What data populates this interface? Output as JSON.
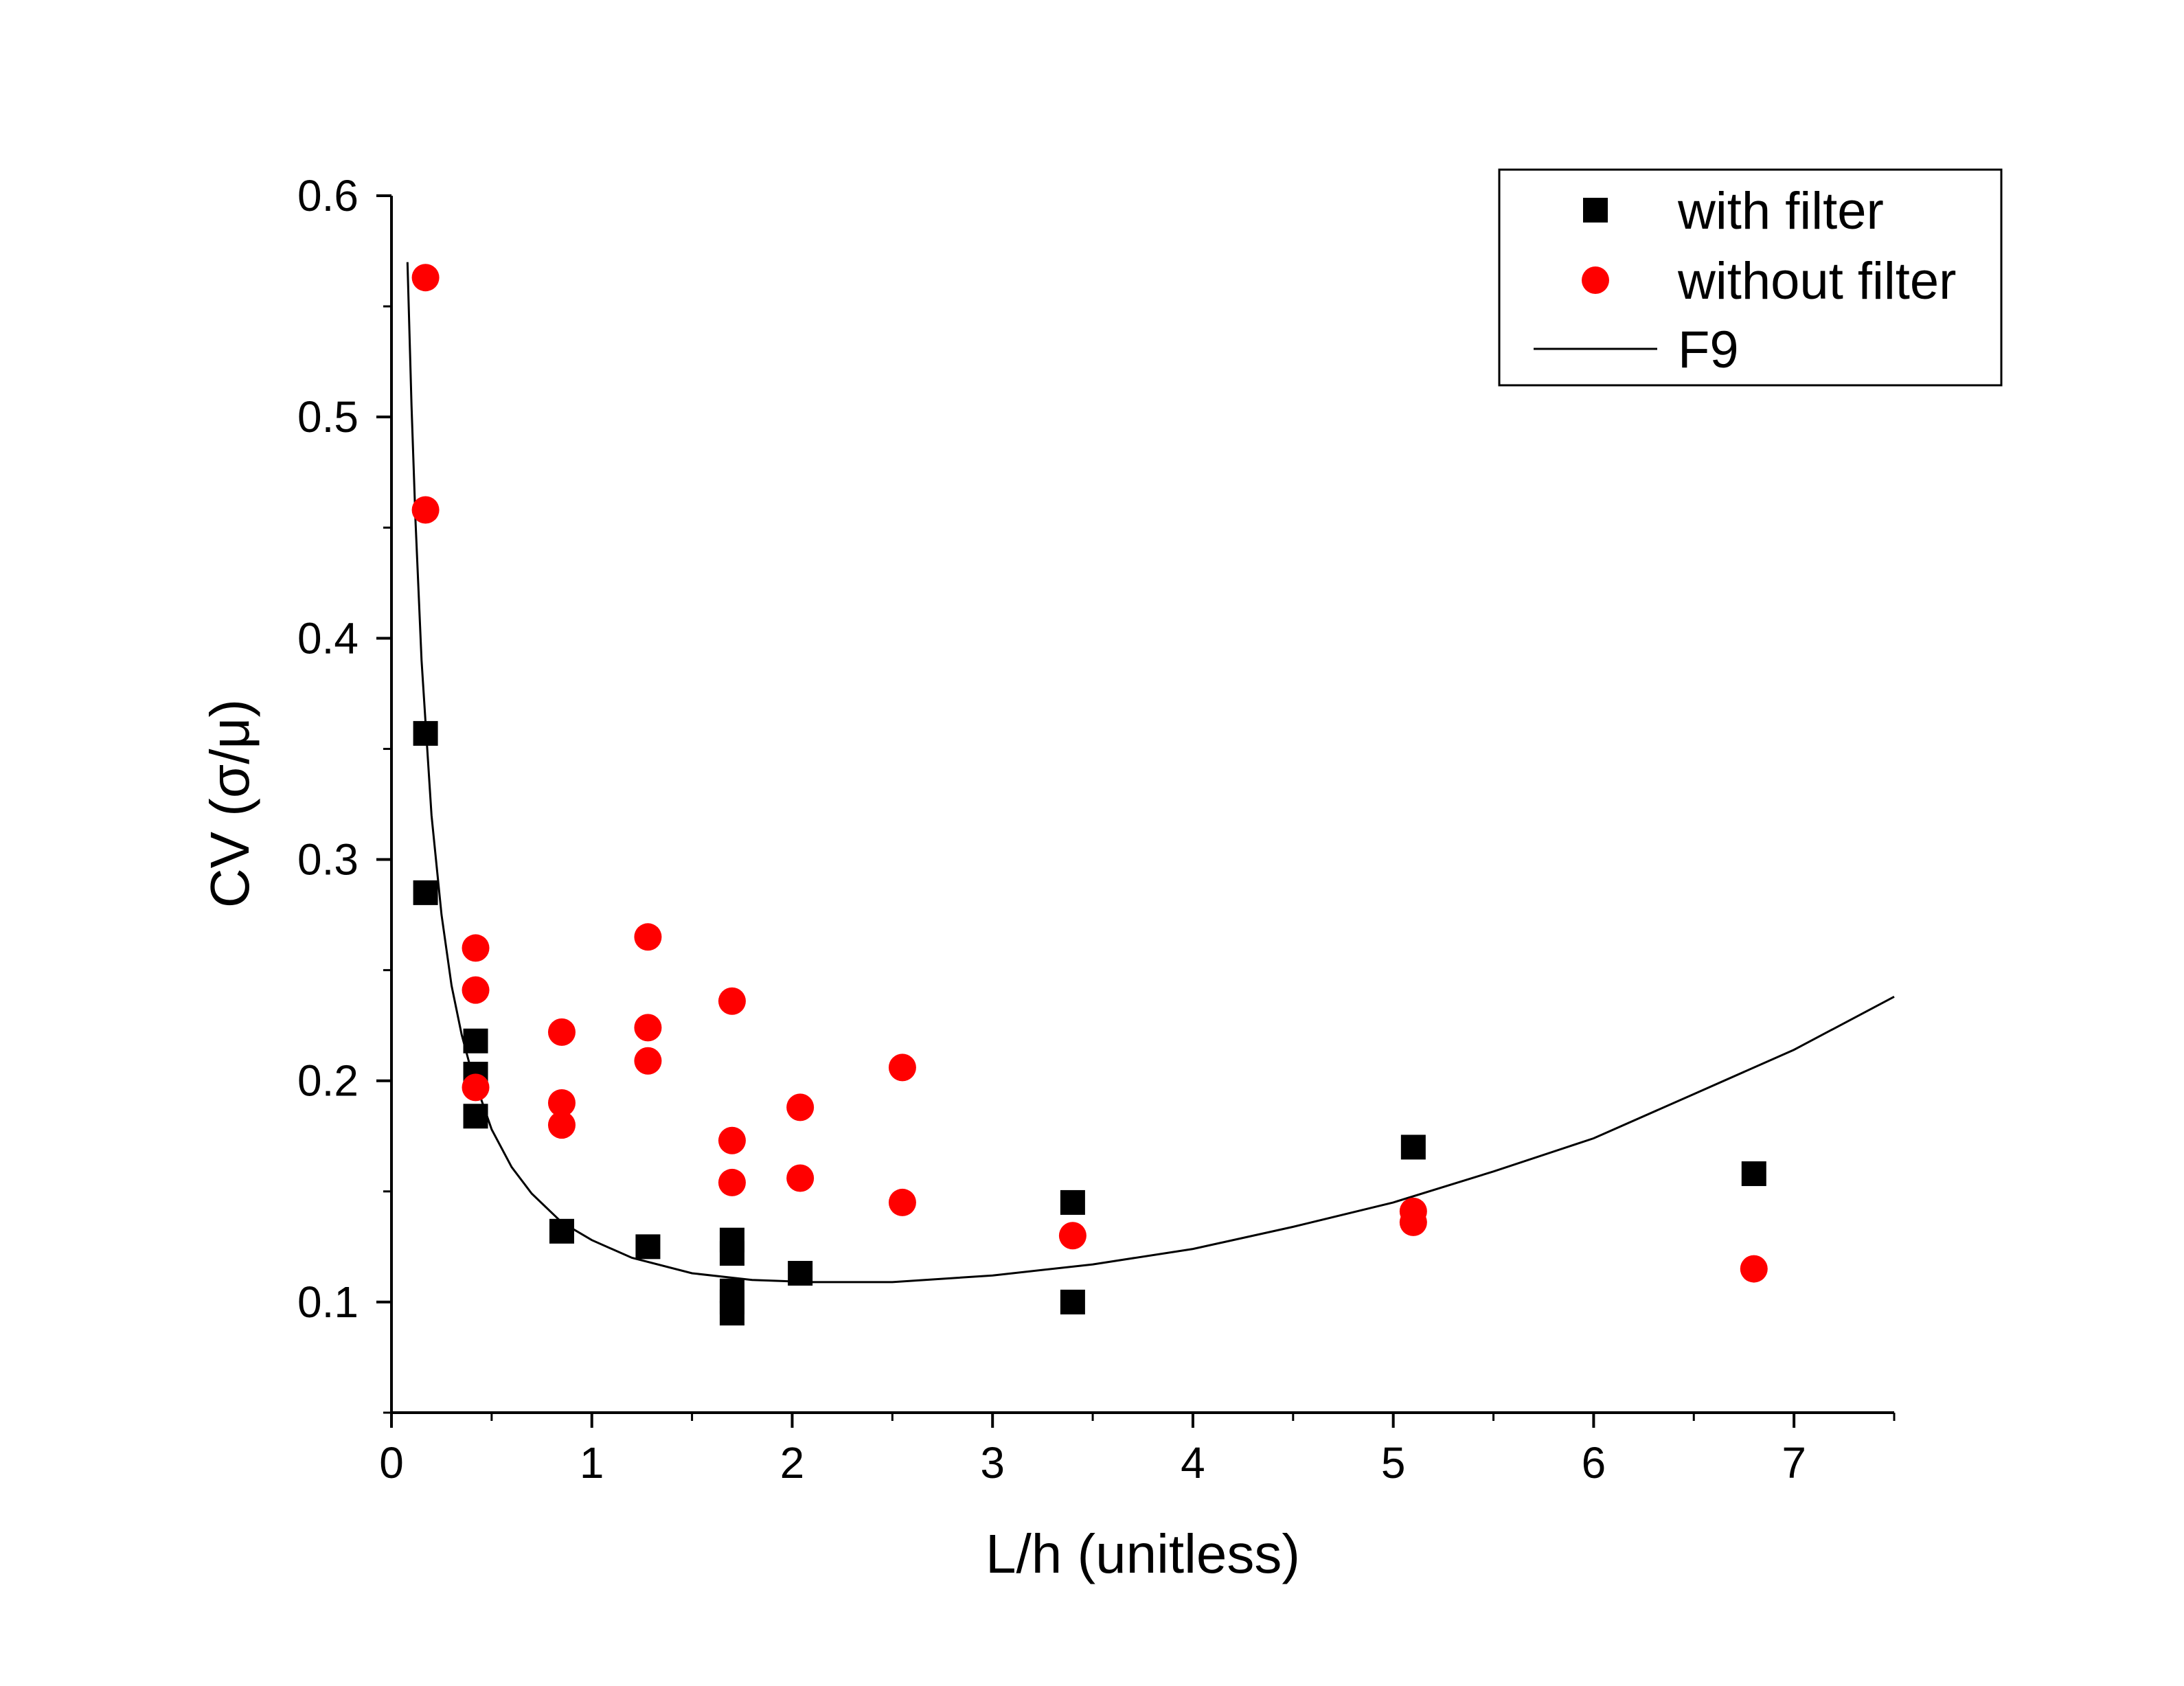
{
  "chart_data": {
    "type": "scatter",
    "xlabel": "L/h (unitless)",
    "ylabel": "CV (σ/μ)",
    "xlim": [
      0,
      7.5
    ],
    "ylim": [
      0.05,
      0.6
    ],
    "x_ticks": [
      0,
      1,
      2,
      3,
      4,
      5,
      6,
      7
    ],
    "x_tick_labels": [
      "0",
      "1",
      "2",
      "3",
      "4",
      "5",
      "6",
      "7"
    ],
    "y_ticks": [
      0.1,
      0.2,
      0.3,
      0.4,
      0.5,
      0.6
    ],
    "y_tick_labels": [
      "0.1",
      "0.2",
      "0.3",
      "0.4",
      "0.5",
      "0.6"
    ],
    "grid": false,
    "legend_position": "top-right",
    "series": [
      {
        "name": "with filter",
        "marker": "square",
        "color": "#000000",
        "points": [
          [
            0.17,
            0.357
          ],
          [
            0.17,
            0.285
          ],
          [
            0.42,
            0.218
          ],
          [
            0.42,
            0.203
          ],
          [
            0.42,
            0.184
          ],
          [
            0.85,
            0.132
          ],
          [
            1.28,
            0.125
          ],
          [
            1.7,
            0.128
          ],
          [
            1.7,
            0.122
          ],
          [
            1.7,
            0.105
          ],
          [
            1.7,
            0.1
          ],
          [
            1.7,
            0.095
          ],
          [
            2.04,
            0.113
          ],
          [
            3.4,
            0.145
          ],
          [
            3.4,
            0.1
          ],
          [
            5.1,
            0.17
          ],
          [
            6.8,
            0.158
          ]
        ]
      },
      {
        "name": "without filter",
        "marker": "circle",
        "color": "#ff0000",
        "points": [
          [
            0.17,
            0.563
          ],
          [
            0.17,
            0.458
          ],
          [
            0.42,
            0.26
          ],
          [
            0.42,
            0.241
          ],
          [
            0.42,
            0.197
          ],
          [
            0.85,
            0.222
          ],
          [
            0.85,
            0.19
          ],
          [
            0.85,
            0.18
          ],
          [
            1.28,
            0.265
          ],
          [
            1.28,
            0.224
          ],
          [
            1.28,
            0.209
          ],
          [
            1.7,
            0.236
          ],
          [
            1.7,
            0.173
          ],
          [
            1.7,
            0.154
          ],
          [
            2.04,
            0.188
          ],
          [
            2.04,
            0.156
          ],
          [
            2.55,
            0.206
          ],
          [
            2.55,
            0.145
          ],
          [
            3.4,
            0.13
          ],
          [
            5.1,
            0.141
          ],
          [
            5.1,
            0.136
          ],
          [
            6.8,
            0.115
          ]
        ]
      },
      {
        "name": "F9",
        "type": "line",
        "color": "#000000",
        "points": [
          [
            0.08,
            0.57
          ],
          [
            0.1,
            0.505
          ],
          [
            0.12,
            0.453
          ],
          [
            0.15,
            0.39
          ],
          [
            0.2,
            0.32
          ],
          [
            0.25,
            0.275
          ],
          [
            0.3,
            0.243
          ],
          [
            0.35,
            0.221
          ],
          [
            0.4,
            0.204
          ],
          [
            0.5,
            0.178
          ],
          [
            0.6,
            0.161
          ],
          [
            0.7,
            0.149
          ],
          [
            0.85,
            0.136
          ],
          [
            1.0,
            0.128
          ],
          [
            1.2,
            0.12
          ],
          [
            1.5,
            0.113
          ],
          [
            1.8,
            0.11
          ],
          [
            2.1,
            0.109
          ],
          [
            2.5,
            0.109
          ],
          [
            3.0,
            0.112
          ],
          [
            3.5,
            0.117
          ],
          [
            4.0,
            0.124
          ],
          [
            4.5,
            0.134
          ],
          [
            5.0,
            0.145
          ],
          [
            5.5,
            0.159
          ],
          [
            6.0,
            0.174
          ],
          [
            6.5,
            0.194
          ],
          [
            7.0,
            0.214
          ],
          [
            7.5,
            0.238
          ]
        ]
      }
    ]
  }
}
